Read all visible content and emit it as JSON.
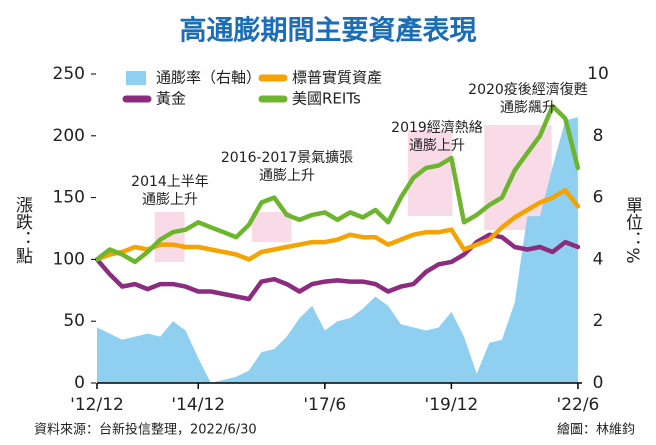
{
  "chart_data": {
    "type": "line",
    "title": "高通膨期間主要資產表現",
    "y_label": "漲跌：點",
    "y2_label": "單位：%",
    "source": "資料來源：台新投信整理，2022/6/30",
    "credit": "繪圖：林維鈞",
    "xlim": [
      2012.92,
      2022.5
    ],
    "xticks": [
      {
        "value": 2012.92,
        "label": "'12/12"
      },
      {
        "value": 2014.92,
        "label": "'14/12"
      },
      {
        "value": 2017.42,
        "label": "'17/6"
      },
      {
        "value": 2019.92,
        "label": "'19/12"
      },
      {
        "value": 2022.42,
        "label": "'22/6"
      }
    ],
    "ylim": [
      0,
      250
    ],
    "yticks": [
      0,
      50,
      100,
      150,
      200,
      250
    ],
    "y2lim": [
      0,
      10
    ],
    "y2ticks": [
      0,
      2,
      4,
      6,
      8,
      10
    ],
    "x": [
      2012.92,
      2013.17,
      2013.42,
      2013.67,
      2013.92,
      2014.17,
      2014.42,
      2014.67,
      2014.92,
      2015.17,
      2015.42,
      2015.67,
      2015.92,
      2016.17,
      2016.42,
      2016.67,
      2016.92,
      2017.17,
      2017.42,
      2017.67,
      2017.92,
      2018.17,
      2018.42,
      2018.67,
      2018.92,
      2019.17,
      2019.42,
      2019.67,
      2019.92,
      2020.17,
      2020.42,
      2020.67,
      2020.92,
      2021.17,
      2021.42,
      2021.67,
      2021.92,
      2022.17,
      2022.42
    ],
    "series": [
      {
        "name": "通膨率（右軸）",
        "color": "#8fd0f0",
        "axis": "y2",
        "kind": "area",
        "values": [
          1.8,
          1.6,
          1.4,
          1.5,
          1.6,
          1.5,
          2.0,
          1.7,
          0.8,
          0.0,
          0.1,
          0.2,
          0.4,
          1.0,
          1.1,
          1.5,
          2.1,
          2.5,
          1.7,
          2.0,
          2.1,
          2.4,
          2.8,
          2.5,
          1.9,
          1.8,
          1.7,
          1.8,
          2.3,
          1.5,
          0.3,
          1.3,
          1.4,
          2.6,
          5.4,
          5.4,
          7.0,
          8.5,
          8.6
        ]
      },
      {
        "name": "黃金",
        "color": "#8b2c7f",
        "values": [
          100,
          88,
          78,
          80,
          76,
          80,
          80,
          78,
          74,
          74,
          72,
          70,
          68,
          82,
          84,
          80,
          74,
          80,
          82,
          83,
          82,
          82,
          80,
          74,
          78,
          80,
          90,
          96,
          98,
          104,
          114,
          120,
          118,
          110,
          108,
          110,
          106,
          114,
          110
        ]
      },
      {
        "name": "標普實質資產",
        "color": "#f4a300",
        "values": [
          100,
          104,
          106,
          110,
          108,
          112,
          112,
          110,
          110,
          108,
          106,
          104,
          100,
          106,
          108,
          110,
          112,
          114,
          114,
          116,
          120,
          118,
          118,
          112,
          116,
          120,
          122,
          122,
          124,
          108,
          112,
          116,
          126,
          134,
          140,
          146,
          150,
          156,
          143
        ]
      },
      {
        "name": "美國REITs",
        "color": "#6cb52d",
        "values": [
          100,
          108,
          104,
          98,
          106,
          116,
          122,
          124,
          130,
          126,
          122,
          118,
          128,
          146,
          150,
          136,
          132,
          136,
          138,
          132,
          138,
          134,
          140,
          130,
          150,
          166,
          174,
          176,
          182,
          130,
          136,
          144,
          150,
          172,
          186,
          200,
          224,
          214,
          174
        ]
      }
    ],
    "annotations": [
      {
        "lines": [
          "2014上半年",
          "通膨上升"
        ],
        "xrange": [
          2014.06,
          2014.65
        ]
      },
      {
        "lines": [
          "2016-2017景氣擴張",
          "通膨上升"
        ],
        "xrange": [
          2015.98,
          2016.76
        ]
      },
      {
        "lines": [
          "2019經濟熱絡",
          "通膨上升"
        ],
        "xrange": [
          2019.06,
          2019.94
        ]
      },
      {
        "lines": [
          "2020疫後經濟復甦",
          "通膨飆升"
        ],
        "xrange": [
          2020.57,
          2021.9
        ]
      }
    ]
  }
}
